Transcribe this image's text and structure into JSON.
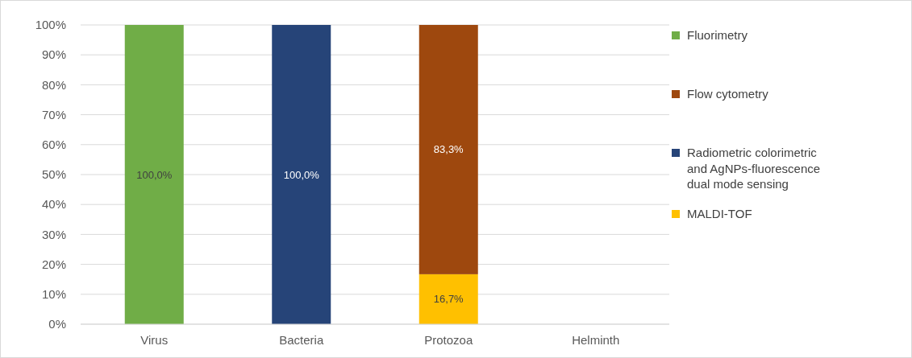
{
  "chart_data": {
    "type": "bar",
    "stacked": true,
    "categories": [
      "Virus",
      "Bacteria",
      "Protozoa",
      "Helminth"
    ],
    "series": [
      {
        "name": "MALDI-TOF",
        "color": "#ffc000",
        "values": [
          null,
          null,
          16.7,
          null
        ],
        "value_labels": [
          null,
          null,
          "16,7%",
          null
        ]
      },
      {
        "name": "Radiometric colorimetric and AgNPs-fluorescence dual mode sensing",
        "color": "#264478",
        "values": [
          null,
          100,
          null,
          null
        ],
        "value_labels": [
          null,
          "100,0%",
          null,
          null
        ]
      },
      {
        "name": "Flow cytometry",
        "color": "#9e480e",
        "values": [
          null,
          null,
          83.3,
          null
        ],
        "value_labels": [
          null,
          null,
          "83,3%",
          null
        ]
      },
      {
        "name": "Fluorimetry",
        "color": "#70ad47",
        "values": [
          100,
          null,
          null,
          null
        ],
        "value_labels": [
          "100,0%",
          null,
          null,
          null
        ]
      }
    ],
    "ylim": [
      0,
      100
    ],
    "yticks": [
      {
        "value": 0,
        "label": "0%"
      },
      {
        "value": 10,
        "label": "10%"
      },
      {
        "value": 20,
        "label": "20%"
      },
      {
        "value": 30,
        "label": "30%"
      },
      {
        "value": 40,
        "label": "40%"
      },
      {
        "value": 50,
        "label": "50%"
      },
      {
        "value": 60,
        "label": "60%"
      },
      {
        "value": 70,
        "label": "70%"
      },
      {
        "value": 80,
        "label": "80%"
      },
      {
        "value": 90,
        "label": "90%"
      },
      {
        "value": 100,
        "label": "100%"
      }
    ],
    "grid": "y",
    "legend": "right"
  }
}
